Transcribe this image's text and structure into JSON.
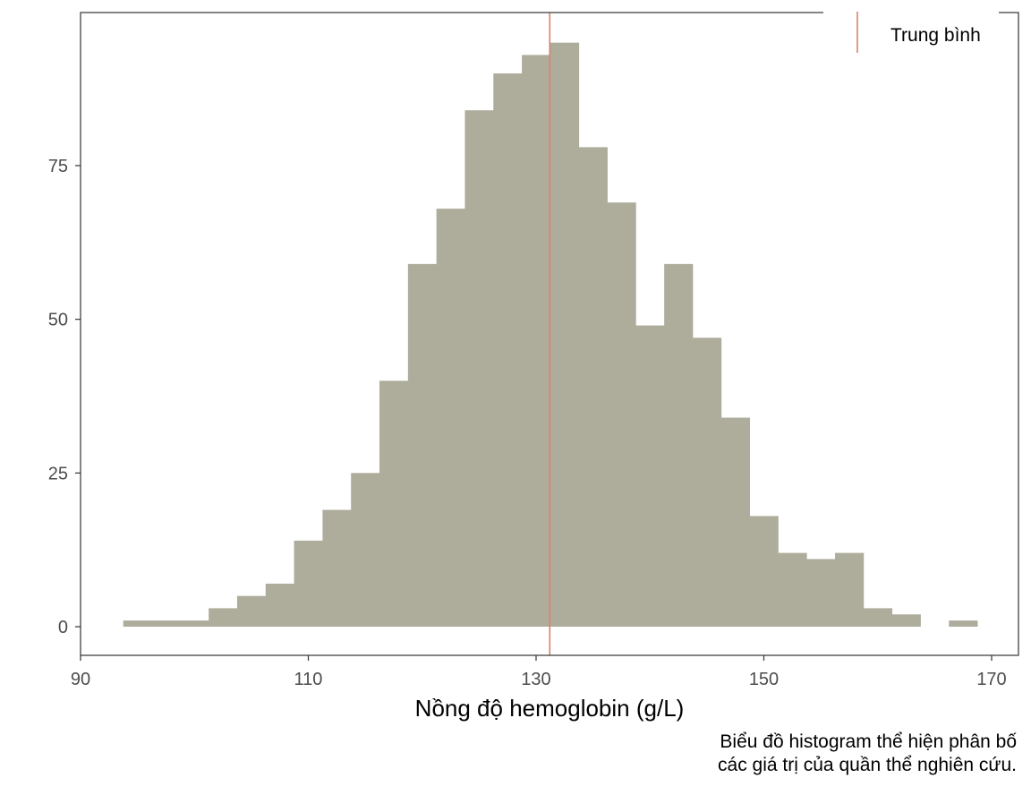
{
  "chart_data": {
    "type": "bar",
    "subtype": "histogram",
    "xlabel": "Nồng độ hemoglobin (g/L)",
    "ylabel": "",
    "xlim": [
      90,
      170
    ],
    "ylim": [
      0,
      95
    ],
    "x_ticks": [
      90,
      110,
      130,
      150,
      170
    ],
    "y_ticks": [
      0,
      25,
      50,
      75
    ],
    "bin_width": 2.5,
    "bins": [
      {
        "start": 93.75,
        "count": 1
      },
      {
        "start": 96.25,
        "count": 1
      },
      {
        "start": 98.75,
        "count": 1
      },
      {
        "start": 101.25,
        "count": 3
      },
      {
        "start": 103.75,
        "count": 5
      },
      {
        "start": 106.25,
        "count": 7
      },
      {
        "start": 108.75,
        "count": 14
      },
      {
        "start": 111.25,
        "count": 19
      },
      {
        "start": 113.75,
        "count": 25
      },
      {
        "start": 116.25,
        "count": 40
      },
      {
        "start": 118.75,
        "count": 59
      },
      {
        "start": 121.25,
        "count": 68
      },
      {
        "start": 123.75,
        "count": 84
      },
      {
        "start": 126.25,
        "count": 90
      },
      {
        "start": 128.75,
        "count": 93
      },
      {
        "start": 131.25,
        "count": 95
      },
      {
        "start": 133.75,
        "count": 78
      },
      {
        "start": 136.25,
        "count": 69
      },
      {
        "start": 138.75,
        "count": 49
      },
      {
        "start": 141.25,
        "count": 59
      },
      {
        "start": 143.75,
        "count": 47
      },
      {
        "start": 146.25,
        "count": 34
      },
      {
        "start": 148.75,
        "count": 18
      },
      {
        "start": 151.25,
        "count": 12
      },
      {
        "start": 153.75,
        "count": 11
      },
      {
        "start": 156.25,
        "count": 12
      },
      {
        "start": 158.75,
        "count": 3
      },
      {
        "start": 161.25,
        "count": 2
      },
      {
        "start": 163.75,
        "count": 0
      },
      {
        "start": 166.25,
        "count": 1
      }
    ],
    "mean": 131.2,
    "legend": {
      "label": "Trung bình",
      "position": "top-right"
    },
    "grid": false,
    "colors": {
      "bar": "#aeac9b",
      "mean_line": "#d9826c",
      "axis": "#333333",
      "tick_label": "#4d4d4d"
    }
  },
  "caption": {
    "line1": "Biểu đồ histogram thể hiện phân bố",
    "line2": "các giá trị của quần thể nghiên cứu."
  }
}
